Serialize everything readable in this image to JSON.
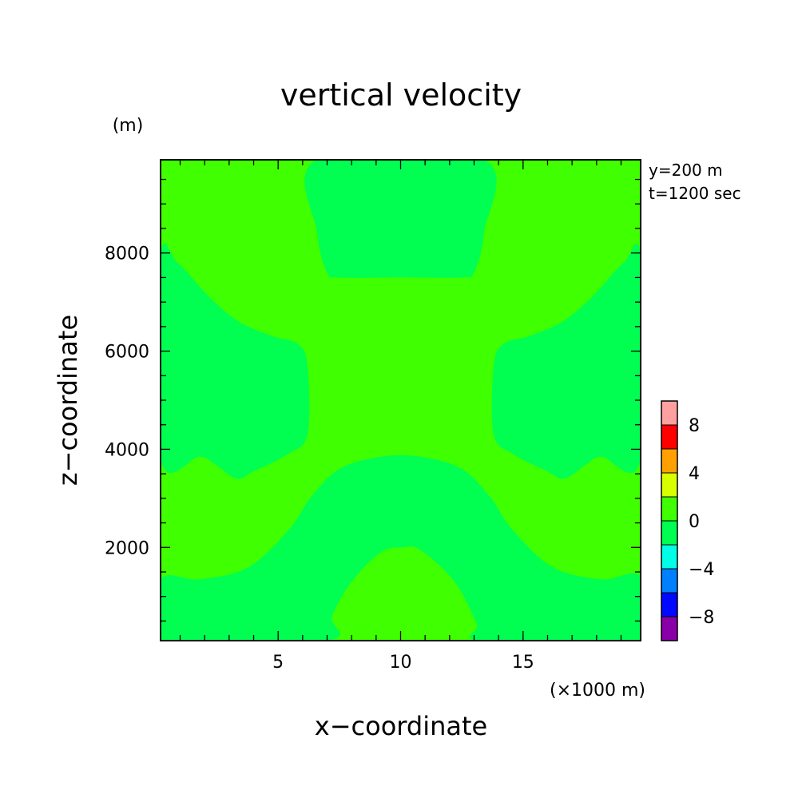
{
  "chart_data": {
    "type": "heatmap",
    "title": "vertical velocity",
    "xlabel": "x−coordinate",
    "ylabel": "z−coordinate",
    "x_unit": "(×1000 m)",
    "y_unit": "(m)",
    "annotations": [
      "y=200 m",
      "t=1200 sec"
    ],
    "xlim": [
      0.2,
      19.8
    ],
    "ylim": [
      100,
      9900
    ],
    "x_ticks": [
      5,
      10,
      15
    ],
    "x_tick_labels": [
      "5",
      "10",
      "15"
    ],
    "y_ticks": [
      2000,
      4000,
      6000,
      8000
    ],
    "y_tick_labels": [
      "2000",
      "4000",
      "6000",
      "8000"
    ],
    "colorbar": {
      "bins": [
        {
          "range": [
            -10,
            -8
          ],
          "color": "#8a00a8"
        },
        {
          "range": [
            -8,
            -6
          ],
          "color": "#0008ff"
        },
        {
          "range": [
            -6,
            -4
          ],
          "color": "#0080ff"
        },
        {
          "range": [
            -4,
            -2
          ],
          "color": "#00ffe6"
        },
        {
          "range": [
            -2,
            0
          ],
          "color": "#00ff50"
        },
        {
          "range": [
            0,
            2
          ],
          "color": "#40ff00"
        },
        {
          "range": [
            2,
            4
          ],
          "color": "#d8ff00"
        },
        {
          "range": [
            4,
            6
          ],
          "color": "#ffa000"
        },
        {
          "range": [
            6,
            8
          ],
          "color": "#ff0000"
        },
        {
          "range": [
            8,
            10
          ],
          "color": "#ffa0a0"
        }
      ],
      "tick_values": [
        -8,
        -4,
        0,
        4,
        8
      ],
      "tick_labels": [
        "−8",
        "−4",
        "0",
        "4",
        "8"
      ]
    },
    "background_level": "0 to 2",
    "regions": [
      {
        "level": "-2 to 0",
        "outline": [
          [
            0.2,
            1350
          ],
          [
            1.8,
            1350
          ],
          [
            3.8,
            1600
          ],
          [
            5.5,
            2400
          ],
          [
            6.3,
            3000
          ],
          [
            7.5,
            3600
          ],
          [
            9.2,
            3850
          ],
          [
            10.8,
            3850
          ],
          [
            12.5,
            3600
          ],
          [
            13.7,
            3000
          ],
          [
            14.5,
            2400
          ],
          [
            16.2,
            1600
          ],
          [
            18.2,
            1350
          ],
          [
            19.8,
            1400
          ],
          [
            19.8,
            100
          ],
          [
            13.3,
            100
          ],
          [
            13.1,
            450
          ],
          [
            12.2,
            1300
          ],
          [
            10.8,
            1950
          ],
          [
            10.1,
            2000
          ],
          [
            9.2,
            1900
          ],
          [
            8.0,
            1300
          ],
          [
            7.2,
            600
          ],
          [
            7.0,
            100
          ],
          [
            0.2,
            100
          ]
        ]
      },
      {
        "level": "-2 to 0",
        "outline": [
          [
            0.2,
            7900
          ],
          [
            0.9,
            7800
          ],
          [
            2.2,
            7100
          ],
          [
            3.4,
            6600
          ],
          [
            4.8,
            6300
          ],
          [
            5.8,
            6150
          ],
          [
            6.2,
            5700
          ],
          [
            6.2,
            4300
          ],
          [
            5.4,
            3900
          ],
          [
            4.0,
            3550
          ],
          [
            3.3,
            3400
          ],
          [
            2.4,
            3700
          ],
          [
            1.8,
            3850
          ],
          [
            0.2,
            3800
          ]
        ]
      },
      {
        "level": "-2 to 0",
        "outline": [
          [
            19.8,
            7900
          ],
          [
            19.1,
            7800
          ],
          [
            17.8,
            7100
          ],
          [
            16.6,
            6600
          ],
          [
            15.2,
            6300
          ],
          [
            14.2,
            6150
          ],
          [
            13.8,
            5700
          ],
          [
            13.8,
            4300
          ],
          [
            14.6,
            3900
          ],
          [
            16.0,
            3550
          ],
          [
            16.7,
            3400
          ],
          [
            17.6,
            3700
          ],
          [
            18.2,
            3850
          ],
          [
            19.8,
            3800
          ]
        ]
      },
      {
        "level": "-2 to 0",
        "outline": [
          [
            6.6,
            9900
          ],
          [
            6.6,
            8400
          ],
          [
            7.0,
            7600
          ],
          [
            7.5,
            7500
          ],
          [
            10.0,
            7500
          ],
          [
            12.5,
            7500
          ],
          [
            13.0,
            7600
          ],
          [
            13.4,
            8400
          ],
          [
            13.4,
            9900
          ]
        ]
      }
    ]
  }
}
